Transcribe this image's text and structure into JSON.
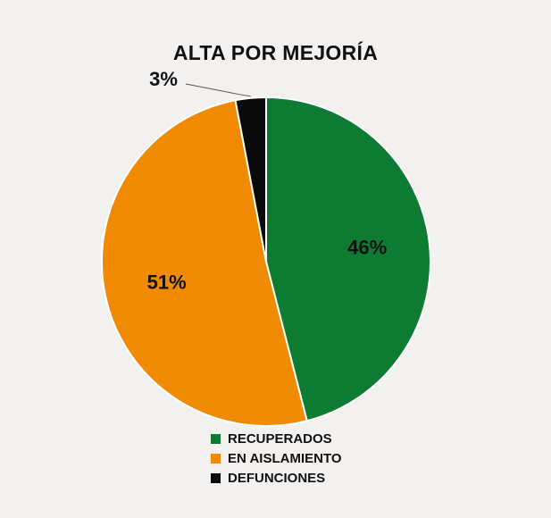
{
  "chart_data": {
    "type": "pie",
    "title": "ALTA POR MEJORÍA",
    "slices": [
      {
        "label": "RECUPERADOS",
        "value": 46,
        "display": "46%",
        "color": "#0e7b32"
      },
      {
        "label": "EN AISLAMIENTO",
        "value": 51,
        "display": "51%",
        "color": "#f08a00"
      },
      {
        "label": "DEFUNCIONES",
        "value": 3,
        "display": "3%",
        "color": "#0a0a0a"
      }
    ],
    "start_angle_deg": 0,
    "direction": "clockwise",
    "legend_position": "bottom"
  }
}
